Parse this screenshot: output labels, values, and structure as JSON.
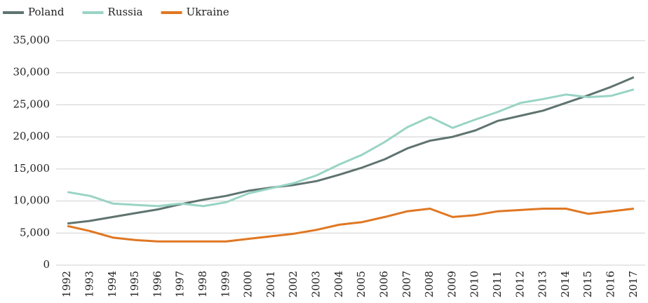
{
  "chart_data": {
    "type": "line",
    "categories": [
      "1992",
      "1993",
      "1994",
      "1995",
      "1996",
      "1997",
      "1998",
      "1999",
      "2000",
      "2001",
      "2002",
      "2003",
      "2004",
      "2005",
      "2006",
      "2007",
      "2008",
      "2009",
      "2010",
      "2011",
      "2012",
      "2013",
      "2014",
      "2015",
      "2016",
      "2017"
    ],
    "series": [
      {
        "name": "Poland",
        "color": "#5f7470",
        "values": [
          6500,
          6900,
          7500,
          8100,
          8700,
          9500,
          10200,
          10800,
          11600,
          12100,
          12500,
          13100,
          14100,
          15200,
          16500,
          18200,
          19400,
          20000,
          21000,
          22500,
          23300,
          24100,
          25300,
          26500,
          27800,
          29300
        ]
      },
      {
        "name": "Russia",
        "color": "#99d4c4",
        "values": [
          11400,
          10800,
          9600,
          9400,
          9200,
          9600,
          9200,
          9800,
          11200,
          12000,
          12800,
          14000,
          15700,
          17200,
          19200,
          21500,
          23100,
          21400,
          22700,
          23900,
          25300,
          25900,
          26600,
          26200,
          26400,
          27400
        ]
      },
      {
        "name": "Ukraine",
        "color": "#e07722",
        "values": [
          6100,
          5300,
          4300,
          3900,
          3700,
          3700,
          3700,
          3700,
          4100,
          4500,
          4900,
          5500,
          6300,
          6700,
          7500,
          8400,
          8800,
          7500,
          7800,
          8400,
          8600,
          8800,
          8800,
          8000,
          8400,
          8800
        ]
      }
    ],
    "ylim": [
      0,
      35000
    ],
    "yticks": [
      0,
      {
        "value": 5000,
        "label": "5,000"
      },
      {
        "value": 10000,
        "label": "10,000"
      },
      {
        "value": 15000,
        "label": "15,000"
      },
      {
        "value": 20000,
        "label": "20,000"
      },
      {
        "value": 25000,
        "label": "25,000"
      },
      {
        "value": 30000,
        "label": "30,000"
      },
      {
        "value": 35000,
        "label": "35,000"
      }
    ],
    "grid": true,
    "legend": "top-left"
  }
}
